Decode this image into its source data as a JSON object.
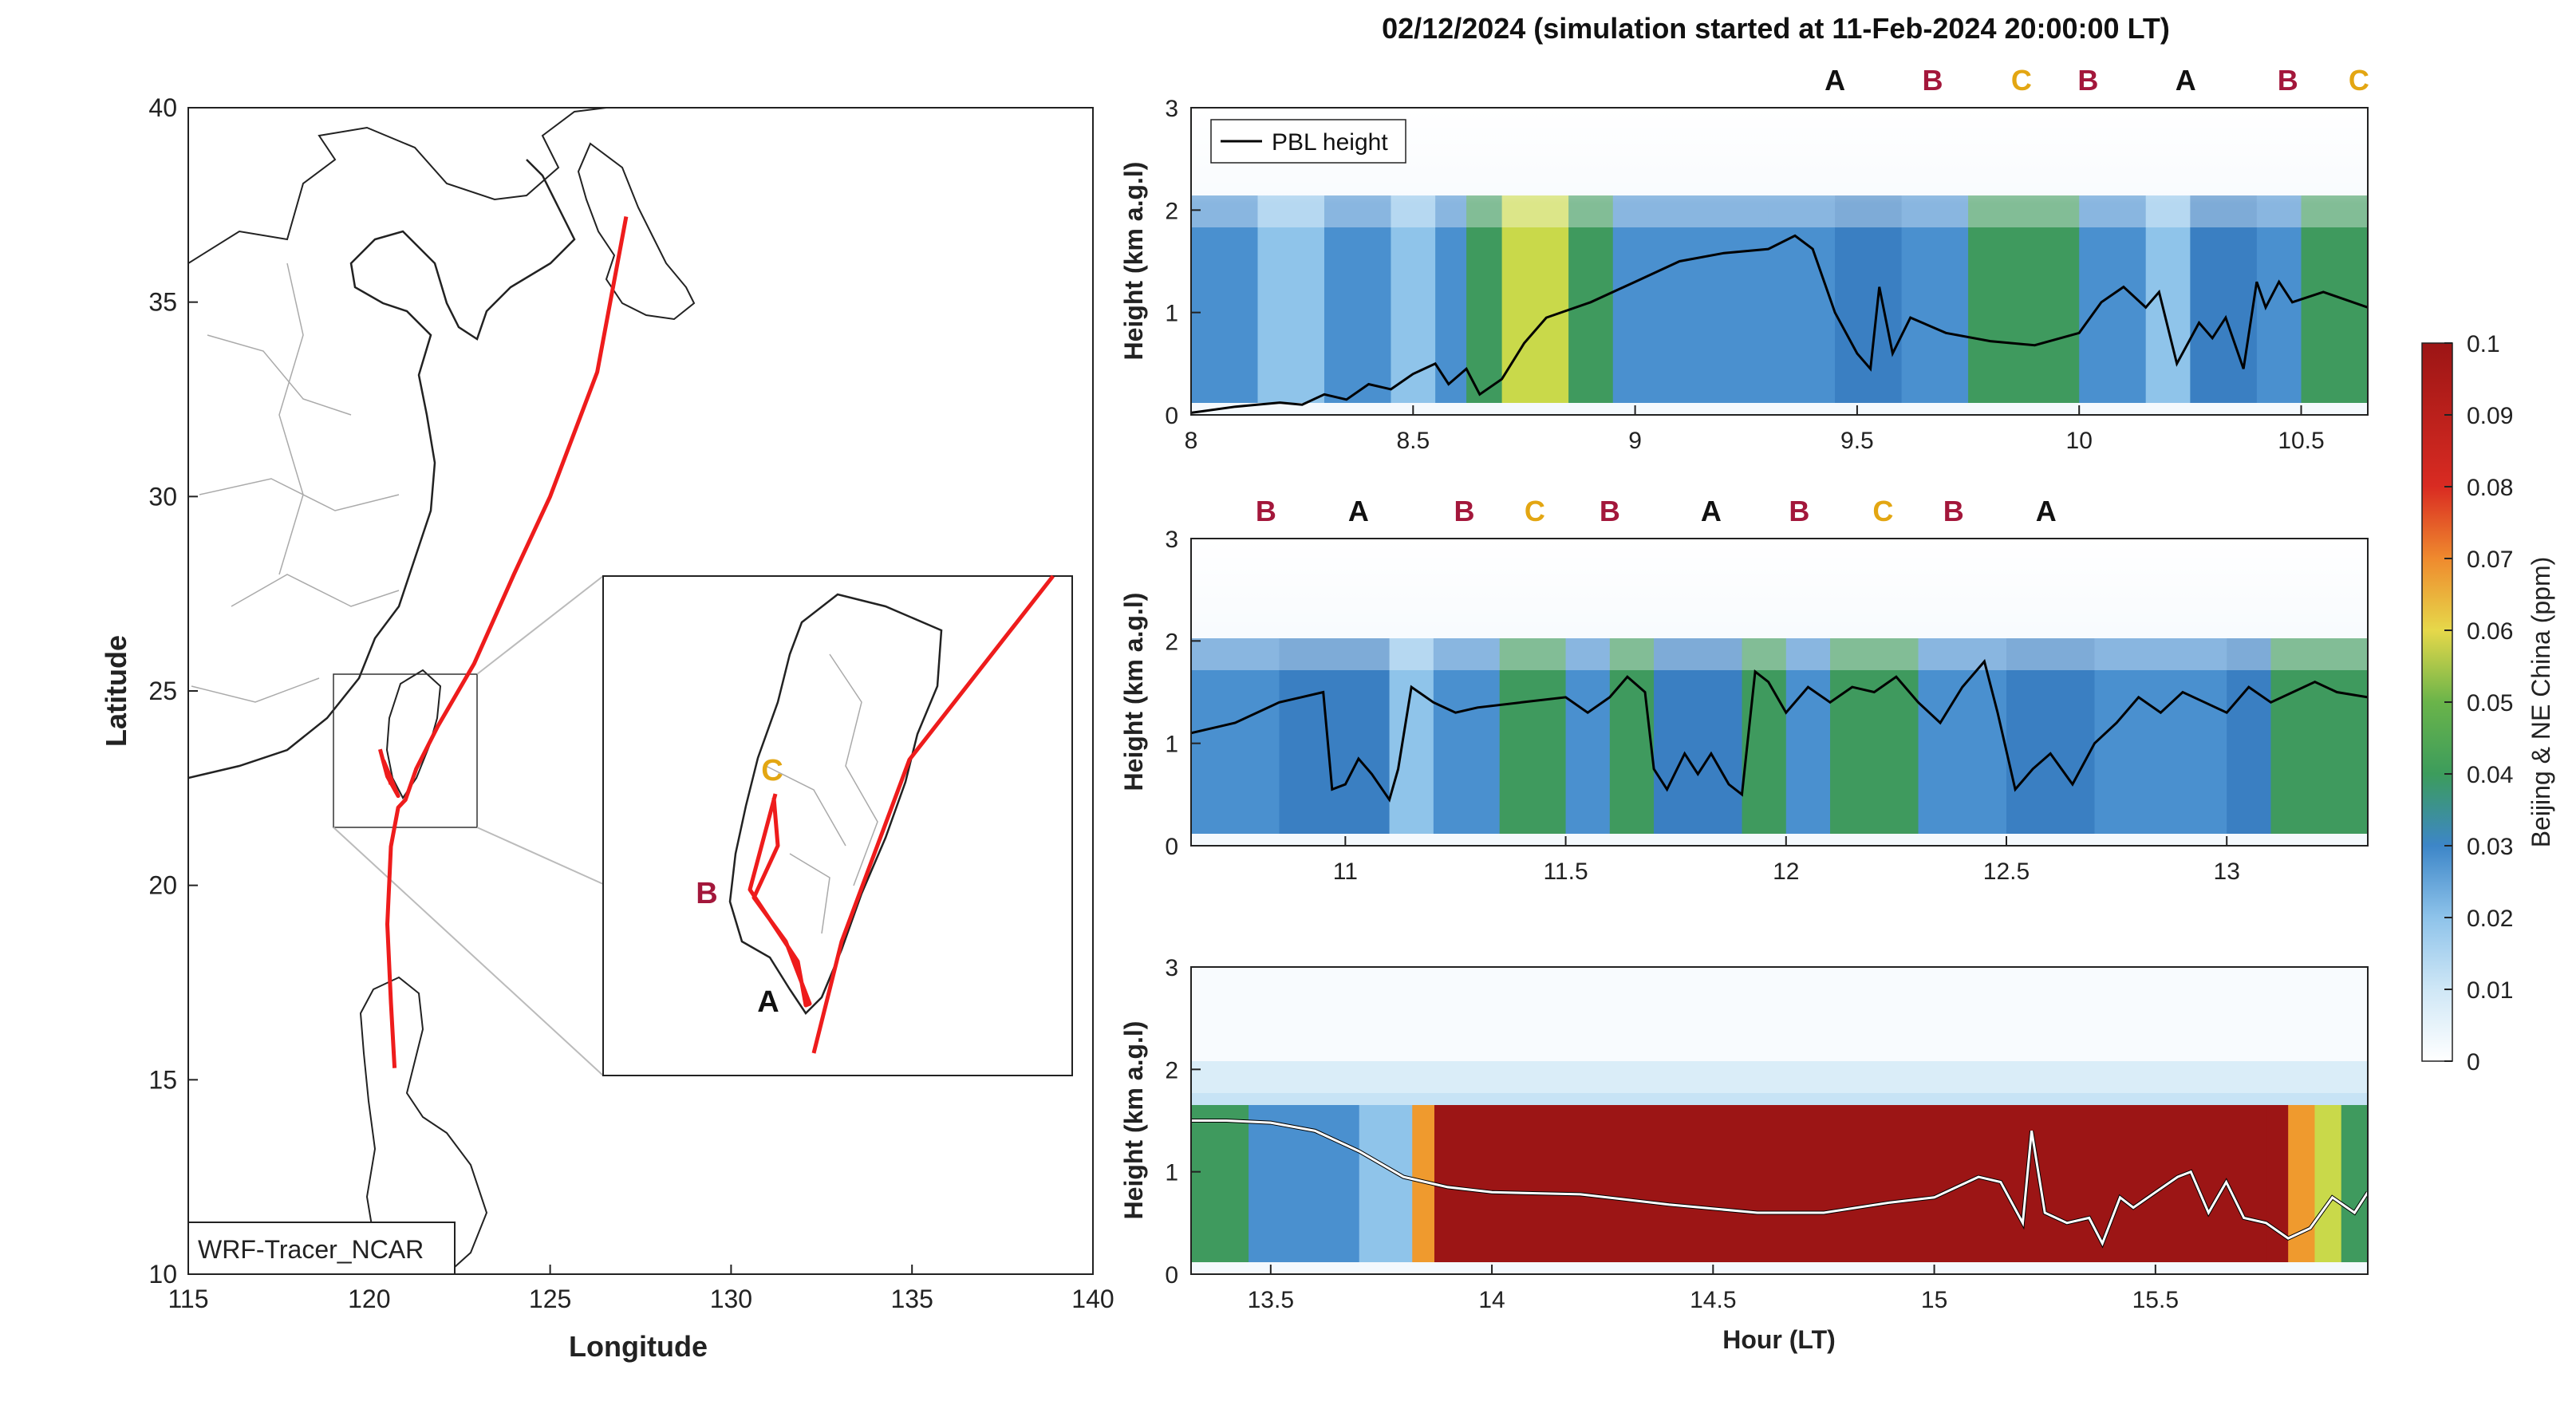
{
  "title": "02/12/2024 (simulation started at 11-Feb-2024 20:00:00 LT)",
  "colors": {
    "track": "#ee1c1c",
    "A": "#111111",
    "B": "#a3173b",
    "C": "#e3a612",
    "pbl": "#000000"
  },
  "chart_data": [
    {
      "type": "map",
      "xlabel": "Longitude",
      "ylabel": "Latitude",
      "xlim": [
        115,
        140
      ],
      "ylim": [
        10,
        40
      ],
      "xticks": [
        "115",
        "120",
        "125",
        "130",
        "135",
        "140"
      ],
      "yticks": [
        "10",
        "15",
        "20",
        "25",
        "30",
        "35",
        "40"
      ],
      "label_box": "WRF-Tracer_NCAR",
      "track": [
        [
          127.1,
          37.2
        ],
        [
          126.3,
          33.2
        ],
        [
          125.0,
          30.0
        ],
        [
          124.0,
          28.0
        ],
        [
          122.9,
          25.7
        ],
        [
          121.9,
          24.1
        ],
        [
          121.3,
          23.0
        ],
        [
          121.0,
          22.2
        ],
        [
          120.8,
          22.0
        ],
        [
          120.6,
          21.0
        ],
        [
          120.5,
          19.0
        ],
        [
          120.6,
          17.0
        ],
        [
          120.7,
          15.3
        ]
      ],
      "track_branch": [
        [
          120.3,
          23.5
        ],
        [
          120.5,
          22.8
        ],
        [
          120.8,
          22.3
        ],
        [
          120.4,
          23.2
        ],
        [
          120.6,
          22.6
        ]
      ],
      "inset": {
        "labels": [
          {
            "text": "C",
            "lon": 120.55,
            "lat": 23.45
          },
          {
            "text": "B",
            "lon": 119.95,
            "lat": 22.85
          },
          {
            "text": "A",
            "lon": 120.55,
            "lat": 21.6
          }
        ]
      }
    },
    {
      "type": "heatmap",
      "ylabel": "Height (km a.g.l)",
      "xlim": [
        8,
        10.65
      ],
      "ylim": [
        0,
        3
      ],
      "xticks": [
        "8",
        "8.5",
        "9",
        "9.5",
        "10",
        "10.5"
      ],
      "yticks": [
        "0",
        "1",
        "2",
        "3"
      ],
      "legend": "PBL height",
      "markers": [
        {
          "t": 9.45,
          "label": "A"
        },
        {
          "t": 9.67,
          "label": "B"
        },
        {
          "t": 9.87,
          "label": "C"
        },
        {
          "t": 10.02,
          "label": "B"
        },
        {
          "t": 10.24,
          "label": "A"
        },
        {
          "t": 10.47,
          "label": "B"
        },
        {
          "t": 10.63,
          "label": "C"
        }
      ],
      "pbl": [
        [
          8.0,
          0.02
        ],
        [
          8.1,
          0.08
        ],
        [
          8.2,
          0.12
        ],
        [
          8.25,
          0.1
        ],
        [
          8.3,
          0.2
        ],
        [
          8.35,
          0.15
        ],
        [
          8.4,
          0.3
        ],
        [
          8.45,
          0.25
        ],
        [
          8.5,
          0.4
        ],
        [
          8.55,
          0.5
        ],
        [
          8.58,
          0.3
        ],
        [
          8.62,
          0.45
        ],
        [
          8.65,
          0.2
        ],
        [
          8.7,
          0.35
        ],
        [
          8.75,
          0.7
        ],
        [
          8.8,
          0.95
        ],
        [
          8.9,
          1.1
        ],
        [
          9.0,
          1.3
        ],
        [
          9.1,
          1.5
        ],
        [
          9.2,
          1.58
        ],
        [
          9.3,
          1.62
        ],
        [
          9.36,
          1.75
        ],
        [
          9.4,
          1.62
        ],
        [
          9.45,
          1.0
        ],
        [
          9.5,
          0.6
        ],
        [
          9.53,
          0.45
        ],
        [
          9.55,
          1.25
        ],
        [
          9.58,
          0.6
        ],
        [
          9.62,
          0.95
        ],
        [
          9.7,
          0.8
        ],
        [
          9.8,
          0.72
        ],
        [
          9.9,
          0.68
        ],
        [
          10.0,
          0.8
        ],
        [
          10.05,
          1.1
        ],
        [
          10.1,
          1.25
        ],
        [
          10.15,
          1.05
        ],
        [
          10.18,
          1.2
        ],
        [
          10.22,
          0.5
        ],
        [
          10.27,
          0.9
        ],
        [
          10.3,
          0.75
        ],
        [
          10.33,
          0.95
        ],
        [
          10.37,
          0.45
        ],
        [
          10.4,
          1.3
        ],
        [
          10.42,
          1.05
        ],
        [
          10.45,
          1.3
        ],
        [
          10.48,
          1.1
        ],
        [
          10.55,
          1.2
        ],
        [
          10.65,
          1.05
        ]
      ],
      "field": [
        [
          8.0,
          "m"
        ],
        [
          8.15,
          "l"
        ],
        [
          8.3,
          "m"
        ],
        [
          8.45,
          "l"
        ],
        [
          8.55,
          "m"
        ],
        [
          8.62,
          "g"
        ],
        [
          8.7,
          "y"
        ],
        [
          8.85,
          "g"
        ],
        [
          8.95,
          "m"
        ],
        [
          9.3,
          "m"
        ],
        [
          9.45,
          "d"
        ],
        [
          9.6,
          "m"
        ],
        [
          9.75,
          "g"
        ],
        [
          10.0,
          "m"
        ],
        [
          10.15,
          "l"
        ],
        [
          10.25,
          "d"
        ],
        [
          10.4,
          "m"
        ],
        [
          10.5,
          "g"
        ],
        [
          10.65,
          "g"
        ]
      ]
    },
    {
      "type": "heatmap",
      "ylabel": "Height (km a.g.l)",
      "xlim": [
        10.65,
        13.32
      ],
      "ylim": [
        0,
        3
      ],
      "xticks": [
        "11",
        "11.5",
        "12",
        "12.5",
        "13"
      ],
      "yticks": [
        "0",
        "1",
        "2",
        "3"
      ],
      "markers": [
        {
          "t": 10.82,
          "label": "B"
        },
        {
          "t": 11.03,
          "label": "A"
        },
        {
          "t": 11.27,
          "label": "B"
        },
        {
          "t": 11.43,
          "label": "C"
        },
        {
          "t": 11.6,
          "label": "B"
        },
        {
          "t": 11.83,
          "label": "A"
        },
        {
          "t": 12.03,
          "label": "B"
        },
        {
          "t": 12.22,
          "label": "C"
        },
        {
          "t": 12.38,
          "label": "B"
        },
        {
          "t": 12.59,
          "label": "A"
        }
      ],
      "pbl": [
        [
          10.65,
          1.1
        ],
        [
          10.75,
          1.2
        ],
        [
          10.85,
          1.4
        ],
        [
          10.9,
          1.45
        ],
        [
          10.95,
          1.5
        ],
        [
          10.97,
          0.55
        ],
        [
          11.0,
          0.6
        ],
        [
          11.03,
          0.85
        ],
        [
          11.06,
          0.7
        ],
        [
          11.1,
          0.45
        ],
        [
          11.12,
          0.75
        ],
        [
          11.15,
          1.55
        ],
        [
          11.2,
          1.4
        ],
        [
          11.25,
          1.3
        ],
        [
          11.3,
          1.35
        ],
        [
          11.4,
          1.4
        ],
        [
          11.5,
          1.45
        ],
        [
          11.55,
          1.3
        ],
        [
          11.6,
          1.45
        ],
        [
          11.64,
          1.65
        ],
        [
          11.68,
          1.5
        ],
        [
          11.7,
          0.75
        ],
        [
          11.73,
          0.55
        ],
        [
          11.77,
          0.9
        ],
        [
          11.8,
          0.7
        ],
        [
          11.83,
          0.9
        ],
        [
          11.87,
          0.6
        ],
        [
          11.9,
          0.5
        ],
        [
          11.93,
          1.7
        ],
        [
          11.96,
          1.6
        ],
        [
          12.0,
          1.3
        ],
        [
          12.05,
          1.55
        ],
        [
          12.1,
          1.4
        ],
        [
          12.15,
          1.55
        ],
        [
          12.2,
          1.5
        ],
        [
          12.25,
          1.65
        ],
        [
          12.3,
          1.4
        ],
        [
          12.35,
          1.2
        ],
        [
          12.4,
          1.55
        ],
        [
          12.45,
          1.8
        ],
        [
          12.48,
          1.3
        ],
        [
          12.52,
          0.55
        ],
        [
          12.56,
          0.75
        ],
        [
          12.6,
          0.9
        ],
        [
          12.65,
          0.6
        ],
        [
          12.7,
          1.0
        ],
        [
          12.75,
          1.2
        ],
        [
          12.8,
          1.45
        ],
        [
          12.85,
          1.3
        ],
        [
          12.9,
          1.5
        ],
        [
          12.95,
          1.4
        ],
        [
          13.0,
          1.3
        ],
        [
          13.05,
          1.55
        ],
        [
          13.1,
          1.4
        ],
        [
          13.15,
          1.5
        ],
        [
          13.2,
          1.6
        ],
        [
          13.25,
          1.5
        ],
        [
          13.32,
          1.45
        ]
      ],
      "field": [
        [
          10.65,
          "m"
        ],
        [
          10.85,
          "d"
        ],
        [
          11.1,
          "l"
        ],
        [
          11.2,
          "m"
        ],
        [
          11.35,
          "g"
        ],
        [
          11.5,
          "m"
        ],
        [
          11.6,
          "g"
        ],
        [
          11.7,
          "d"
        ],
        [
          11.9,
          "g"
        ],
        [
          12.0,
          "m"
        ],
        [
          12.1,
          "g"
        ],
        [
          12.3,
          "m"
        ],
        [
          12.5,
          "d"
        ],
        [
          12.7,
          "m"
        ],
        [
          13.0,
          "d"
        ],
        [
          13.1,
          "g"
        ],
        [
          13.32,
          "g"
        ]
      ]
    },
    {
      "type": "heatmap",
      "xlabel": "Hour (LT)",
      "ylabel": "Height (km a.g.l)",
      "xlim": [
        13.32,
        15.98
      ],
      "ylim": [
        0,
        3
      ],
      "xticks": [
        "13.5",
        "14",
        "14.5",
        "15",
        "15.5"
      ],
      "yticks": [
        "0",
        "1",
        "2",
        "3"
      ],
      "pbl": [
        [
          13.32,
          1.5
        ],
        [
          13.4,
          1.5
        ],
        [
          13.5,
          1.48
        ],
        [
          13.6,
          1.4
        ],
        [
          13.7,
          1.2
        ],
        [
          13.8,
          0.95
        ],
        [
          13.9,
          0.85
        ],
        [
          14.0,
          0.8
        ],
        [
          14.2,
          0.78
        ],
        [
          14.4,
          0.68
        ],
        [
          14.6,
          0.6
        ],
        [
          14.75,
          0.6
        ],
        [
          14.9,
          0.7
        ],
        [
          15.0,
          0.75
        ],
        [
          15.1,
          0.95
        ],
        [
          15.15,
          0.9
        ],
        [
          15.2,
          0.5
        ],
        [
          15.22,
          1.4
        ],
        [
          15.25,
          0.6
        ],
        [
          15.3,
          0.5
        ],
        [
          15.35,
          0.55
        ],
        [
          15.38,
          0.3
        ],
        [
          15.42,
          0.75
        ],
        [
          15.45,
          0.65
        ],
        [
          15.5,
          0.8
        ],
        [
          15.55,
          0.95
        ],
        [
          15.58,
          1.0
        ],
        [
          15.62,
          0.6
        ],
        [
          15.66,
          0.9
        ],
        [
          15.7,
          0.55
        ],
        [
          15.75,
          0.5
        ],
        [
          15.8,
          0.35
        ],
        [
          15.85,
          0.45
        ],
        [
          15.9,
          0.75
        ],
        [
          15.95,
          0.6
        ],
        [
          15.98,
          0.8
        ]
      ],
      "field": [
        [
          13.32,
          "g"
        ],
        [
          13.45,
          "m"
        ],
        [
          13.7,
          "l"
        ],
        [
          13.82,
          "o"
        ],
        [
          13.87,
          "r"
        ],
        [
          15.75,
          "r"
        ],
        [
          15.8,
          "o"
        ],
        [
          15.86,
          "y"
        ],
        [
          15.92,
          "g"
        ],
        [
          15.98,
          "g"
        ]
      ]
    }
  ],
  "colorbar": {
    "label": "Beijing & NE China (ppm)",
    "ticks": [
      "0",
      "0.01",
      "0.02",
      "0.03",
      "0.04",
      "0.05",
      "0.06",
      "0.07",
      "0.08",
      "0.09",
      "0.1"
    ]
  }
}
